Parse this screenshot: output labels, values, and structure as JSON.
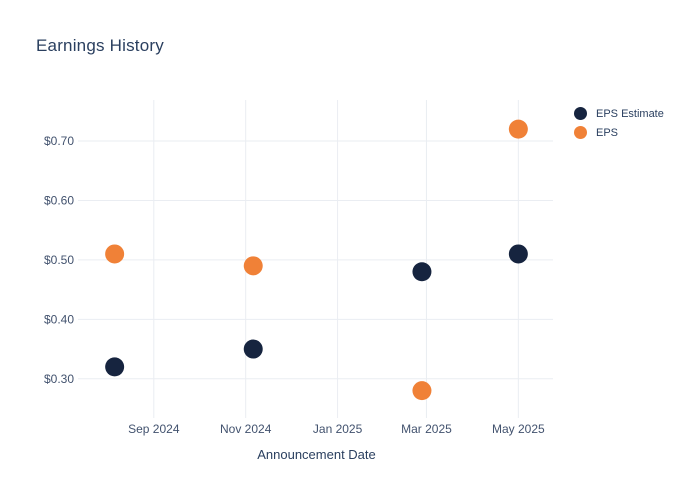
{
  "header": {
    "title": "Earnings History"
  },
  "legend": {
    "items": [
      {
        "label": "EPS Estimate",
        "color": "#16243f"
      },
      {
        "label": "EPS",
        "color": "#f08137"
      }
    ]
  },
  "colors": {
    "background": "#ffffff",
    "grid": "#eaedf2",
    "title_text": "#2a3f5f",
    "tick_text": "#42526e",
    "eps_estimate": "#16243f",
    "eps": "#f08137"
  },
  "chart_data": {
    "type": "scatter",
    "title": "Earnings History",
    "xlabel": "Announcement Date",
    "ylabel": "",
    "grid": true,
    "legend_position": "top-right",
    "marker_size_px": 19,
    "x_range": [
      "2024-07-14",
      "2025-05-24"
    ],
    "y_range": [
      0.234,
      0.769
    ],
    "x_ticks": [
      {
        "label": "Sep 2024",
        "date": "2024-09-01"
      },
      {
        "label": "Nov 2024",
        "date": "2024-11-01"
      },
      {
        "label": "Jan 2025",
        "date": "2025-01-01"
      },
      {
        "label": "Mar 2025",
        "date": "2025-03-01"
      },
      {
        "label": "May 2025",
        "date": "2025-05-01"
      }
    ],
    "y_ticks": [
      {
        "label": "$0.30",
        "value": 0.3
      },
      {
        "label": "$0.40",
        "value": 0.4
      },
      {
        "label": "$0.50",
        "value": 0.5
      },
      {
        "label": "$0.60",
        "value": 0.6
      },
      {
        "label": "$0.70",
        "value": 0.7
      }
    ],
    "series": [
      {
        "name": "EPS Estimate",
        "color": "#16243f",
        "points": [
          {
            "date": "2024-08-06",
            "value": 0.32
          },
          {
            "date": "2024-11-06",
            "value": 0.35
          },
          {
            "date": "2025-02-26",
            "value": 0.48
          },
          {
            "date": "2025-05-01",
            "value": 0.51
          }
        ]
      },
      {
        "name": "EPS",
        "color": "#f08137",
        "points": [
          {
            "date": "2024-08-06",
            "value": 0.51
          },
          {
            "date": "2024-11-06",
            "value": 0.49
          },
          {
            "date": "2025-02-26",
            "value": 0.28
          },
          {
            "date": "2025-05-01",
            "value": 0.72
          }
        ]
      }
    ]
  }
}
